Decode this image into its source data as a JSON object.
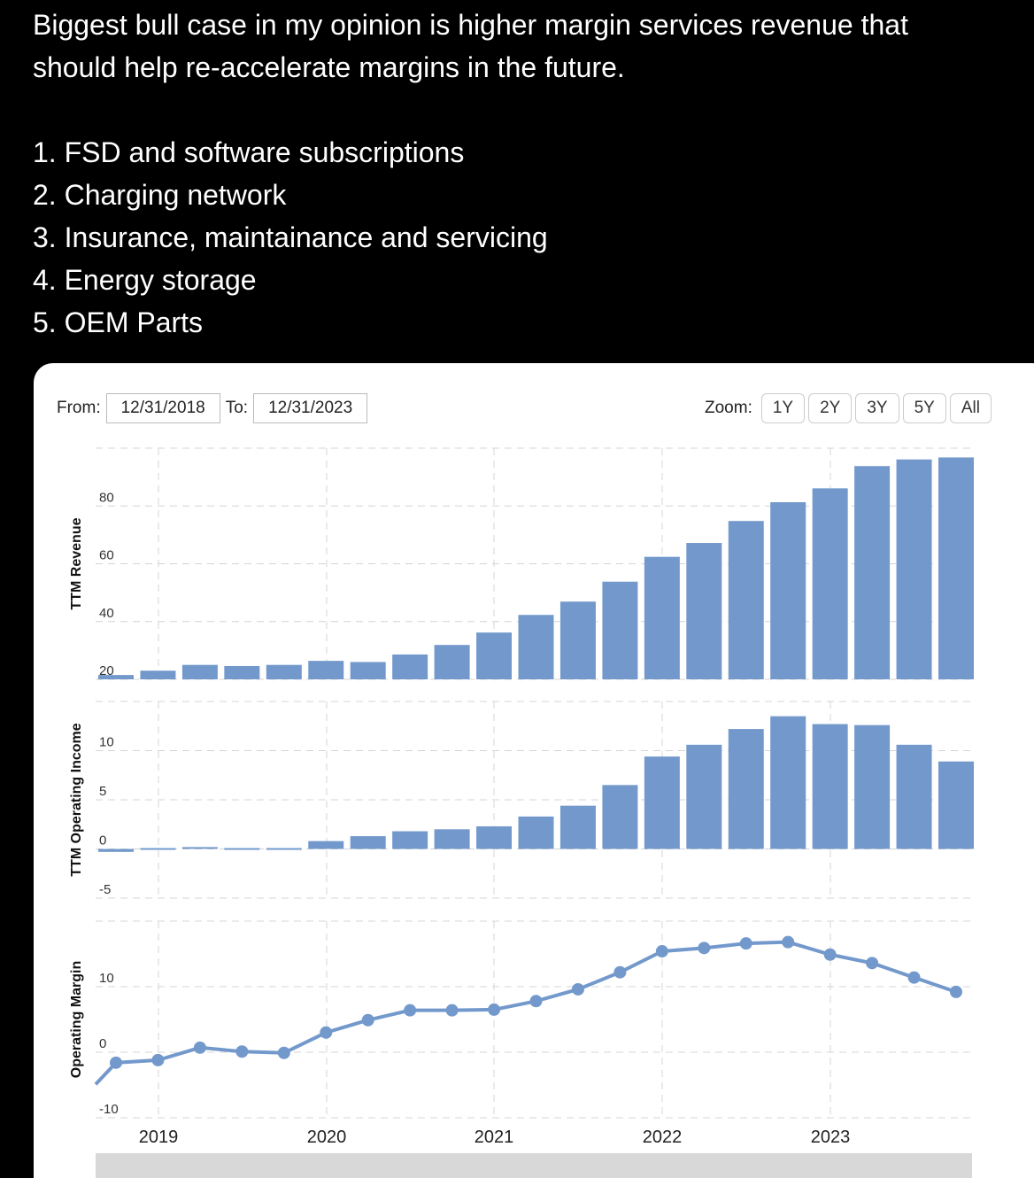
{
  "tweet": {
    "intro_line1": "Biggest bull case in my opinion is higher margin services revenue that",
    "intro_line2": "should help re-accelerate margins in the future.",
    "items": [
      "1. FSD and software subscriptions",
      "2. Charging network",
      "3. Insurance, maintainance and servicing",
      "4. Energy storage",
      "5. OEM Parts"
    ]
  },
  "controls": {
    "from_label": "From:",
    "from_value": "12/31/2018",
    "to_label": "To:",
    "to_value": "12/31/2023",
    "zoom_label": "Zoom:",
    "zoom_buttons": [
      "1Y",
      "2Y",
      "3Y",
      "5Y",
      "All"
    ]
  },
  "colors": {
    "series": "#7399cc",
    "grid": "#d4d4d4"
  },
  "chart_data": [
    {
      "type": "bar",
      "ylabel": "TTM Revenue",
      "ylim": [
        20,
        100
      ],
      "yticks": [
        "20",
        "40",
        "60",
        "80"
      ],
      "ytick_values": [
        20,
        40,
        60,
        80
      ],
      "xticks": [
        "2019",
        "2020",
        "2021",
        "2022",
        "2023"
      ],
      "values": [
        21.5,
        23,
        25,
        24.6,
        25,
        26.4,
        26,
        28.6,
        31.9,
        36.2,
        42.3,
        46.9,
        53.8,
        62.4,
        67.2,
        74.8,
        81.3,
        86.1,
        93.8,
        96.1,
        96.8
      ]
    },
    {
      "type": "bar",
      "ylabel": "TTM Operating Income",
      "ylim": [
        -5,
        15
      ],
      "yticks": [
        "-5",
        "0",
        "5",
        "10"
      ],
      "ytick_values": [
        -5,
        0,
        5,
        10
      ],
      "values": [
        -0.3,
        -0.1,
        0.1,
        0.0,
        -0.1,
        0.8,
        1.3,
        1.8,
        2.0,
        2.3,
        3.3,
        4.4,
        6.5,
        9.4,
        10.6,
        12.2,
        13.5,
        12.7,
        12.6,
        10.6,
        8.9
      ]
    },
    {
      "type": "line",
      "ylabel": "Operating Margin",
      "ylim": [
        -10,
        20
      ],
      "yticks": [
        "-10",
        "0",
        "10"
      ],
      "ytick_values": [
        -10,
        0,
        10
      ],
      "leading_value": -4.9,
      "values": [
        -1.6,
        -1.2,
        0.7,
        0.1,
        -0.1,
        3.0,
        4.9,
        6.4,
        6.4,
        6.5,
        7.8,
        9.6,
        12.2,
        15.4,
        15.9,
        16.6,
        16.8,
        14.9,
        13.6,
        11.4,
        9.2
      ]
    }
  ]
}
